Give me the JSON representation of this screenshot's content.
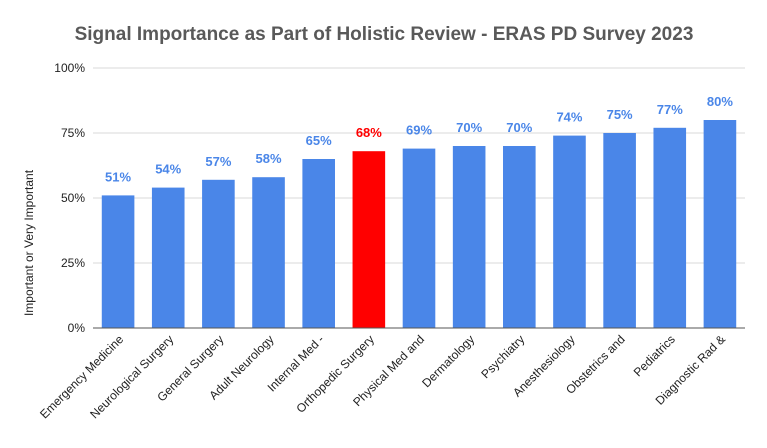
{
  "chart_data": {
    "type": "bar",
    "title": "Signal Importance as Part of Holistic Review -  ERAS PD Survey 2023",
    "xlabel": "",
    "ylabel": "Important or Very Important",
    "ylim": [
      0,
      100
    ],
    "yticks": [
      "0%",
      "25%",
      "50%",
      "75%",
      "100%"
    ],
    "ytick_values": [
      0,
      25,
      50,
      75,
      100
    ],
    "grid": true,
    "categories": [
      "Emergency Medicine",
      "Neurological Surgery",
      "General Surgery",
      "Adult Neurology",
      "Internal Med -",
      "Orthopedic Surgery",
      "Physical Med and",
      "Dermatology",
      "Psychiatry",
      "Anesthesiology",
      "Obstetrics and",
      "Pediatrics",
      "Diagnostic Rad &"
    ],
    "values": [
      51,
      54,
      57,
      58,
      65,
      68,
      69,
      70,
      70,
      74,
      75,
      77,
      80
    ],
    "data_labels": [
      "51%",
      "54%",
      "57%",
      "58%",
      "65%",
      "68%",
      "69%",
      "70%",
      "70%",
      "74%",
      "75%",
      "77%",
      "80%"
    ],
    "highlight_index": 5,
    "colors": {
      "bar": "#4a86e8",
      "highlight": "#ff0000",
      "label": "#4a86e8",
      "highlight_label": "#ff0000"
    }
  }
}
